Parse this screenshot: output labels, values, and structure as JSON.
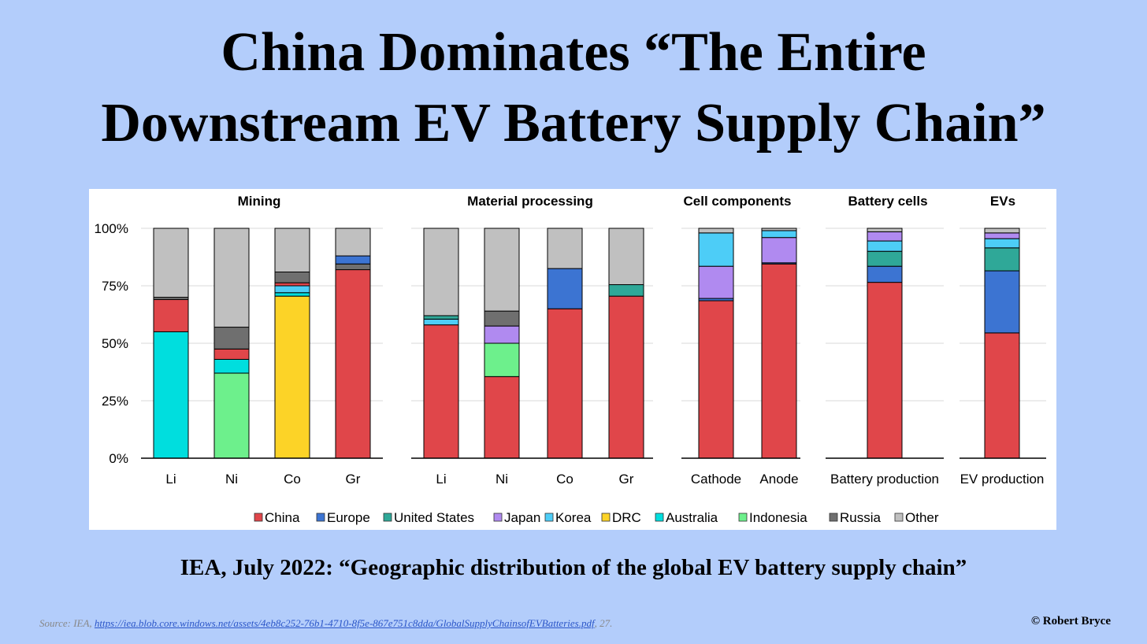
{
  "title": {
    "line1": "China Dominates “The Entire",
    "line2": "Downstream EV Battery Supply Chain”"
  },
  "subtitle": "IEA, July 2022: “Geographic distribution of the global EV battery supply chain”",
  "source": {
    "prefix": "Source: IEA, ",
    "link": "https://iea.blob.core.windows.net/assets/4eb8c252-76b1-4710-8f5e-867e751c8dda/GlobalSupplyChainsofEVBatteries.pdf",
    "suffix": ", 27."
  },
  "copyright": "© Robert Bryce",
  "chart_data": {
    "type": "bar",
    "stacked": true,
    "ylim": [
      0,
      100
    ],
    "yticks": [
      "0%",
      "25%",
      "50%",
      "75%",
      "100%"
    ],
    "grid": true,
    "legend_position": "bottom",
    "series_colors": {
      "China": "#e0464a",
      "Europe": "#3c74d2",
      "United States": "#2fa898",
      "Japan": "#b08af0",
      "Korea": "#4dcdf7",
      "DRC": "#fcd327",
      "Australia": "#00dede",
      "Indonesia": "#6df08c",
      "Russia": "#6f6f6f",
      "Other": "#c0c0c0"
    },
    "legend": [
      "China",
      "Europe",
      "United States",
      "Japan",
      "Korea",
      "DRC",
      "Australia",
      "Indonesia",
      "Russia",
      "Other"
    ],
    "groups": [
      {
        "name": "Mining",
        "bars": [
          {
            "label": "Li",
            "segments": [
              [
                "Australia",
                55
              ],
              [
                "China",
                14
              ],
              [
                "Russia",
                1
              ],
              [
                "Other",
                30
              ]
            ]
          },
          {
            "label": "Ni",
            "segments": [
              [
                "Indonesia",
                37
              ],
              [
                "Australia",
                6
              ],
              [
                "China",
                4.5
              ],
              [
                "Russia",
                9.5
              ],
              [
                "Other",
                43
              ]
            ]
          },
          {
            "label": "Co",
            "segments": [
              [
                "DRC",
                70.5
              ],
              [
                "Australia",
                1.5
              ],
              [
                "Korea",
                3
              ],
              [
                "China",
                1.3
              ],
              [
                "Russia",
                4.7
              ],
              [
                "Other",
                19
              ]
            ]
          },
          {
            "label": "Gr",
            "segments": [
              [
                "China",
                82
              ],
              [
                "Russia",
                2.5
              ],
              [
                "Europe",
                3.5
              ],
              [
                "Other",
                12
              ]
            ]
          }
        ]
      },
      {
        "name": "Material processing",
        "bars": [
          {
            "label": "Li",
            "segments": [
              [
                "China",
                58
              ],
              [
                "Korea",
                2.5
              ],
              [
                "United States",
                1.5
              ],
              [
                "Other",
                38
              ]
            ]
          },
          {
            "label": "Ni",
            "segments": [
              [
                "China",
                35.5
              ],
              [
                "Indonesia",
                14.5
              ],
              [
                "Japan",
                7.5
              ],
              [
                "Russia",
                6.5
              ],
              [
                "Other",
                36
              ]
            ]
          },
          {
            "label": "Co",
            "segments": [
              [
                "China",
                65
              ],
              [
                "Europe",
                17.5
              ],
              [
                "Other",
                17.5
              ]
            ]
          },
          {
            "label": "Gr",
            "segments": [
              [
                "China",
                70.5
              ],
              [
                "United States",
                5
              ],
              [
                "Other",
                24.5
              ]
            ]
          }
        ]
      },
      {
        "name": "Cell components",
        "bars": [
          {
            "label": "Cathode",
            "segments": [
              [
                "China",
                68.5
              ],
              [
                "Europe",
                1
              ],
              [
                "Japan",
                14
              ],
              [
                "Korea",
                14.5
              ],
              [
                "Other",
                2
              ]
            ]
          },
          {
            "label": "Anode",
            "segments": [
              [
                "China",
                84.5
              ],
              [
                "Europe",
                0.5
              ],
              [
                "Japan",
                11
              ],
              [
                "Korea",
                3
              ],
              [
                "Other",
                1
              ]
            ]
          }
        ]
      },
      {
        "name": "Battery cells",
        "bars": [
          {
            "label": "Battery production",
            "segments": [
              [
                "China",
                76.5
              ],
              [
                "Europe",
                7
              ],
              [
                "United States",
                6.5
              ],
              [
                "Korea",
                4.5
              ],
              [
                "Japan",
                4
              ],
              [
                "Other",
                1.5
              ]
            ]
          }
        ]
      },
      {
        "name": "EVs",
        "bars": [
          {
            "label": "EV production",
            "segments": [
              [
                "China",
                54.5
              ],
              [
                "Europe",
                27
              ],
              [
                "United States",
                10
              ],
              [
                "Korea",
                4
              ],
              [
                "Japan",
                2.5
              ],
              [
                "Other",
                2
              ]
            ]
          }
        ]
      }
    ]
  }
}
